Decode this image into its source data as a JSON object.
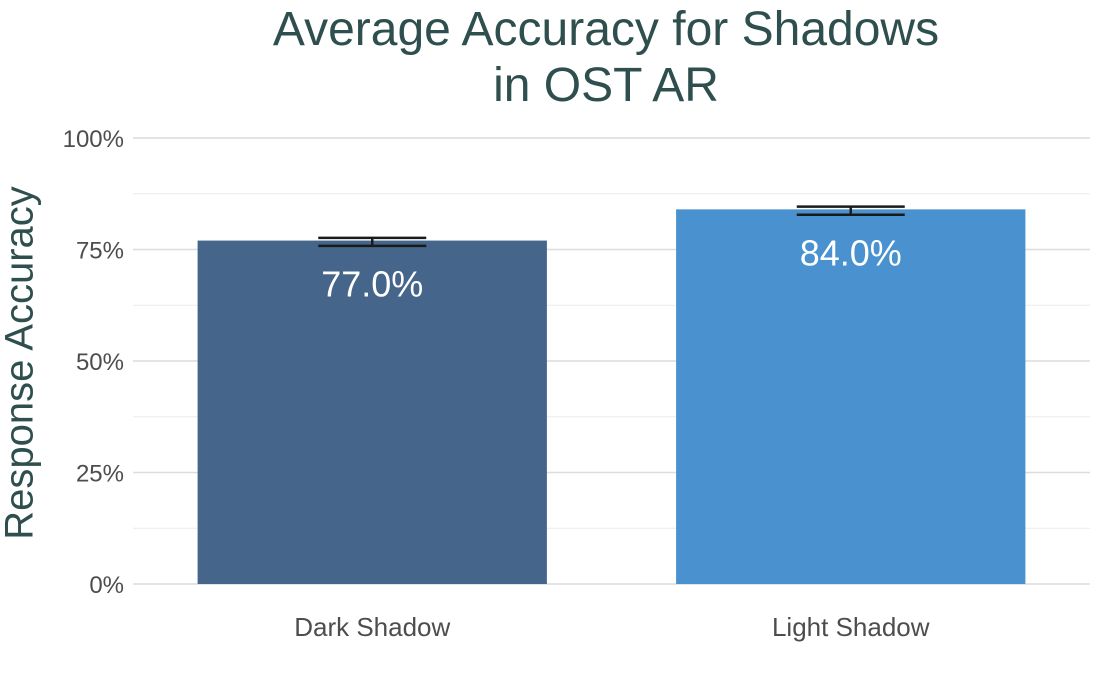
{
  "chart_data": {
    "type": "bar",
    "title_lines": [
      "Average Accuracy for Shadows",
      "in OST AR"
    ],
    "xlabel": "",
    "ylabel": "Response Accuracy",
    "categories": [
      "Dark Shadow",
      "Light Shadow"
    ],
    "values": [
      0.77,
      0.84
    ],
    "data_labels": [
      "77.0%",
      "84.0%"
    ],
    "error_bars": [
      {
        "low": 0.758,
        "high": 0.776
      },
      {
        "low": 0.828,
        "high": 0.846
      }
    ],
    "colors": [
      "#45658b",
      "#4a92cf"
    ],
    "ylim": [
      0,
      1
    ],
    "yticks": [
      0,
      0.25,
      0.5,
      0.75,
      1
    ],
    "ytick_labels": [
      "0%",
      "25%",
      "50%",
      "75%",
      "100%"
    ],
    "grid": true,
    "legend": "none"
  }
}
